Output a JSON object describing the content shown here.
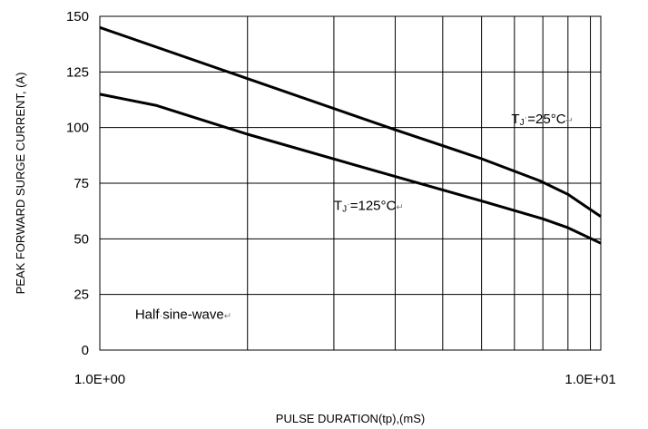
{
  "chart_data": {
    "type": "line",
    "title": "",
    "xlabel": "PULSE DURATION(tp),(mS)",
    "ylabel": "PEAK FORWARD SURGE CURRENT, (A)",
    "x_scale": "log",
    "xlim": [
      1.0,
      10.5
    ],
    "ylim": [
      0,
      150
    ],
    "x_ticks": [
      {
        "value": 1.0,
        "label": "1.0E+00"
      },
      {
        "value": 10.0,
        "label": "1.0E+01"
      }
    ],
    "y_ticks": [
      0,
      25,
      50,
      75,
      100,
      125,
      150
    ],
    "grid": true,
    "legend": "none",
    "series": [
      {
        "x": [
          1.0,
          2.0,
          4.0,
          6.0,
          7.9,
          9.0,
          10.5
        ],
        "y": [
          145,
          122,
          99,
          86,
          76,
          70,
          60
        ]
      },
      {
        "x": [
          1.0,
          1.3,
          2.0,
          4.0,
          6.0,
          8.0,
          9.0,
          10.5
        ],
        "y": [
          115,
          110,
          97,
          78,
          67,
          59,
          55,
          48
        ]
      }
    ],
    "annotations": [
      {
        "text": "Half",
        "dot": "·",
        "text2": "sine-wave",
        "mark": "↵",
        "x": 1.18,
        "y": 14
      },
      {
        "text": "T",
        "sub": "J",
        "dot": "·",
        "text2": "=125°C",
        "mark": "↵",
        "x": 3.0,
        "y": 63
      },
      {
        "text": "T",
        "sub": "J",
        "dot": "·",
        "text2": "=25°C",
        "mark": "↵",
        "x": 6.9,
        "y": 102
      }
    ]
  }
}
